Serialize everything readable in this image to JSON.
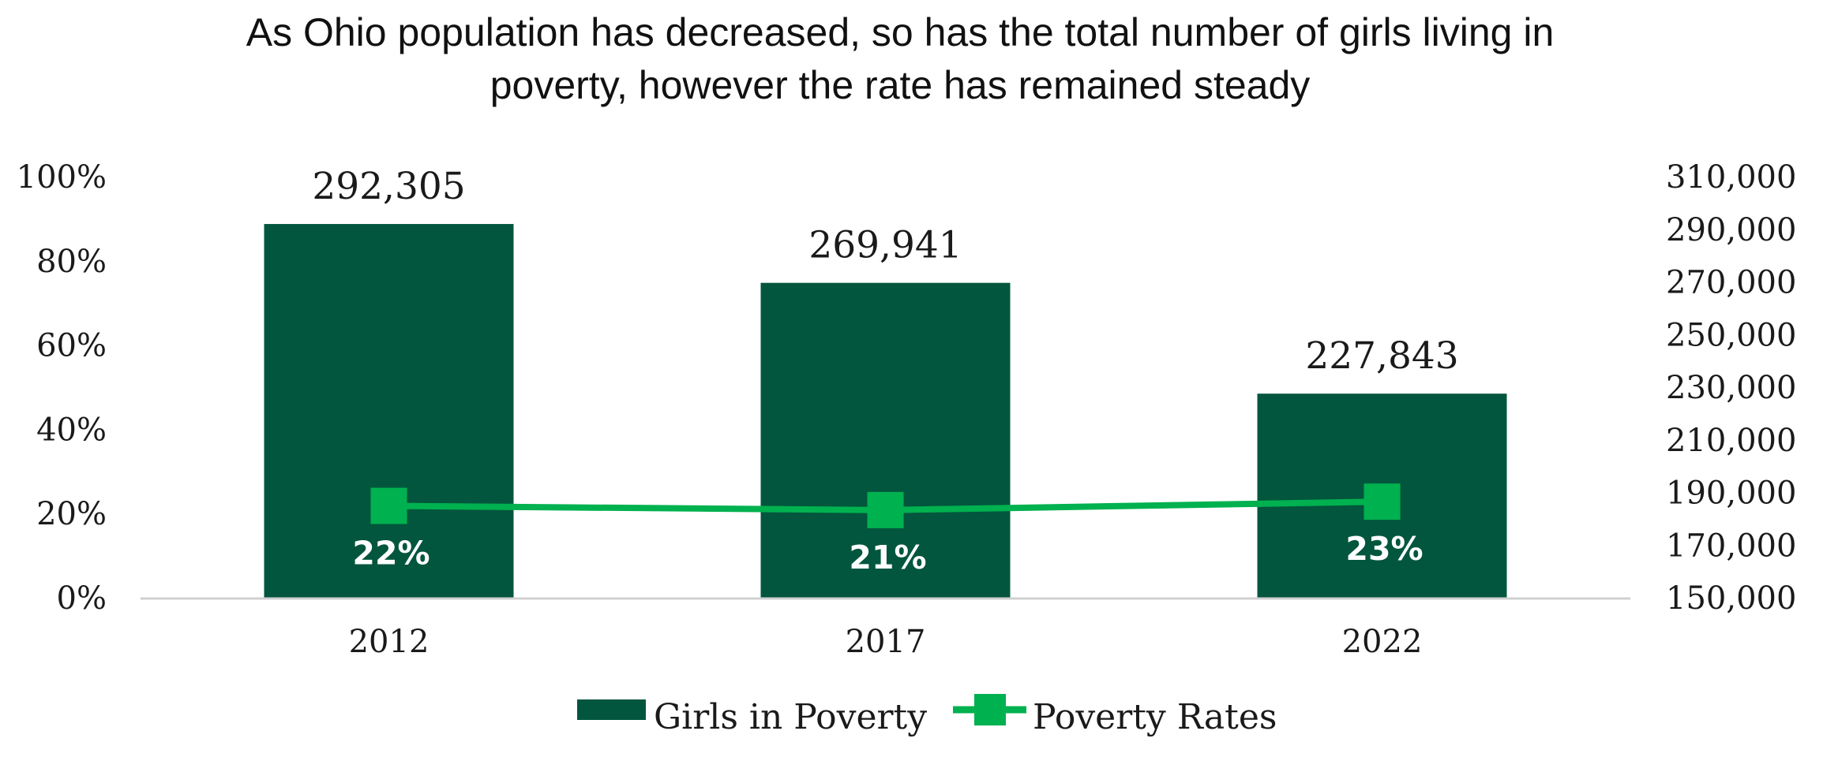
{
  "chart_data": {
    "type": "bar",
    "title_lines": [
      "As Ohio population has decreased, so has the total number of girls living in",
      "poverty, however the rate has remained steady"
    ],
    "categories": [
      "2012",
      "2017",
      "2022"
    ],
    "series": [
      {
        "name": "Girls in Poverty",
        "type": "bar",
        "axis": "right",
        "color": "#02563D",
        "values": [
          292305,
          269941,
          227843
        ],
        "labels": [
          "292,305",
          "269,941",
          "227,843"
        ]
      },
      {
        "name": "Poverty Rates",
        "type": "line",
        "axis": "left",
        "marker": "square",
        "color": "#00B14F",
        "values": [
          0.22,
          0.21,
          0.23
        ],
        "labels": [
          "22%",
          "21%",
          "23%"
        ]
      }
    ],
    "y_left": {
      "min": 0,
      "max": 1,
      "ticks": [
        0,
        0.2,
        0.4,
        0.6,
        0.8,
        1.0
      ],
      "tick_labels": [
        "0%",
        "20%",
        "40%",
        "60%",
        "80%",
        "100%"
      ]
    },
    "y_right": {
      "min": 150000,
      "max": 310000,
      "ticks": [
        150000,
        170000,
        190000,
        210000,
        230000,
        250000,
        270000,
        290000,
        310000
      ],
      "tick_labels": [
        "150,000",
        "170,000",
        "190,000",
        "210,000",
        "230,000",
        "250,000",
        "270,000",
        "290,000",
        "310,000"
      ]
    },
    "legend": {
      "position": "bottom",
      "items": [
        "Girls in Poverty",
        "Poverty Rates"
      ]
    },
    "grid": false
  }
}
